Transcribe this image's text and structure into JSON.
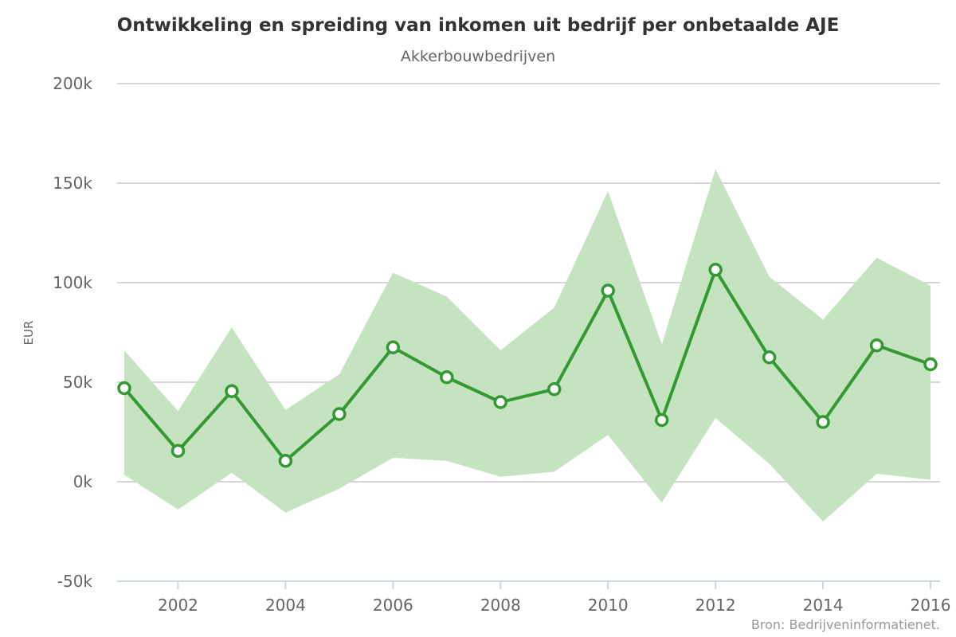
{
  "chart_data": {
    "type": "line",
    "title": "Ontwikkeling en spreiding van inkomen uit bedrijf per onbetaalde AJE",
    "subtitle": "Akkerbouwbedrijven",
    "ylabel": "EUR",
    "xlabel": "",
    "ylim": [
      -50000,
      200000
    ],
    "y_ticks": [
      {
        "value": -50000,
        "label": "-50k"
      },
      {
        "value": 0,
        "label": "0k"
      },
      {
        "value": 50000,
        "label": "50k"
      },
      {
        "value": 100000,
        "label": "100k"
      },
      {
        "value": 150000,
        "label": "150k"
      },
      {
        "value": 200000,
        "label": "200k"
      }
    ],
    "x_ticks": [
      2002,
      2004,
      2006,
      2008,
      2010,
      2012,
      2014,
      2016
    ],
    "grid": true,
    "legend": "none",
    "x": [
      2001,
      2002,
      2003,
      2004,
      2005,
      2006,
      2007,
      2008,
      2009,
      2010,
      2011,
      2012,
      2013,
      2014,
      2015,
      2016
    ],
    "series": [
      {
        "type": "line",
        "color": "#339933",
        "values": [
          47000,
          15500,
          45500,
          10500,
          34000,
          67500,
          52500,
          40000,
          46500,
          96000,
          31000,
          106500,
          62500,
          30000,
          68500,
          59000
        ]
      },
      {
        "type": "arearange",
        "color": "#c5e3c1",
        "low": [
          3500,
          -14000,
          4500,
          -15500,
          -3500,
          12000,
          10500,
          2500,
          5000,
          23500,
          -10500,
          32000,
          9000,
          -20000,
          4000,
          1000
        ],
        "high": [
          66000,
          35500,
          77500,
          36000,
          54000,
          105000,
          93000,
          66000,
          87500,
          146000,
          69000,
          157000,
          103000,
          81500,
          112500,
          98500
        ]
      }
    ],
    "credits": "Bron: Bedrijveninformatienet."
  }
}
